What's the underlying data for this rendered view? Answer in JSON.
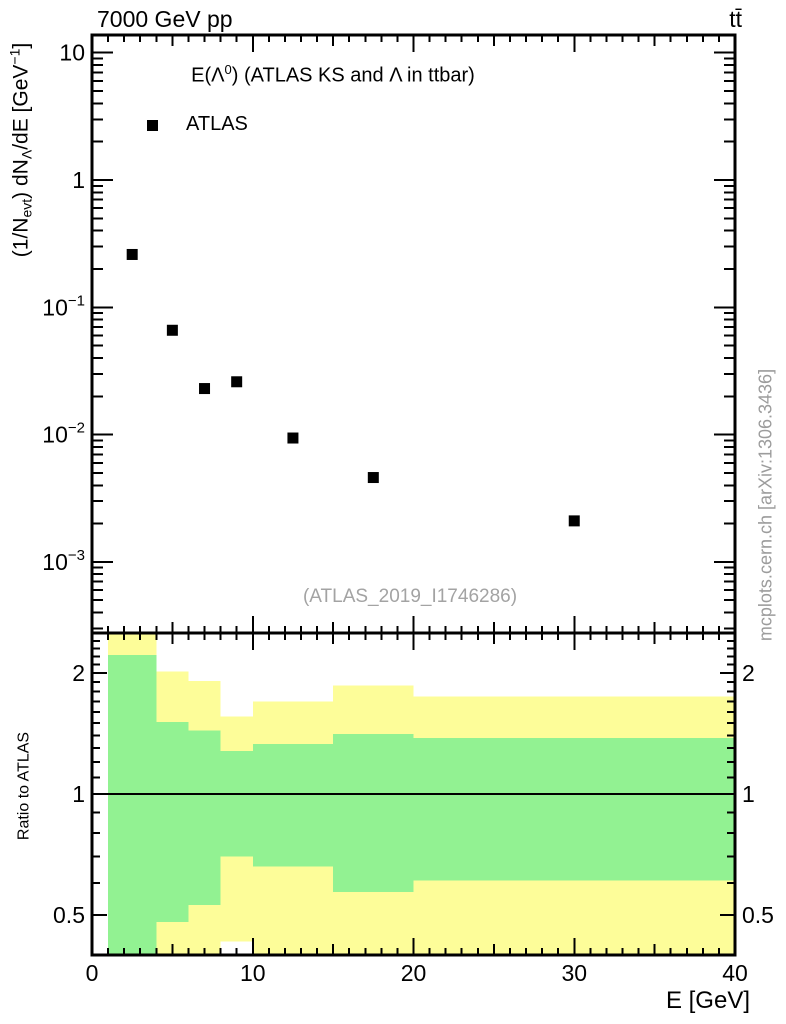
{
  "header": {
    "left": "7000 GeV pp",
    "right": "tt̄"
  },
  "title": {
    "pre": "E(Λ",
    "sup": "0",
    "post": ") (ATLAS KS and Λ in ttbar)"
  },
  "legend": {
    "label": "ATLAS",
    "marker": "filled-square-icon",
    "marker_color": "#000000"
  },
  "watermark": "(ATLAS_2019_I1746286)",
  "side_note": "mcplots.cern.ch [arXiv:1306.3436]",
  "ylabel": {
    "p1": "(1/N",
    "sub1": "evt",
    "p2": ") dN",
    "sub2": "Λ",
    "p3": "/dE [GeV",
    "sup": "−1",
    "p4": "]"
  },
  "ratio_ylabel": "Ratio to ATLAS",
  "xlabel": "E [GeV]",
  "colors": {
    "band_yellow": "#fdfd99",
    "band_green": "#92f292",
    "marker": "#000000",
    "frame": "#000000",
    "gray_text": "#9c9c9c"
  },
  "chart_data": [
    {
      "type": "scatter",
      "panel": "top",
      "title": "E(Λ⁰) (ATLAS KS and Λ in ttbar)",
      "xlabel": "E [GeV]",
      "ylabel": "(1/N_evt) dN_Λ/dE [GeV⁻¹]",
      "xlim": [
        0,
        40
      ],
      "yscale": "log",
      "ylim": [
        0.00028,
        13.8
      ],
      "grid": false,
      "legend_position": "upper-left-inside",
      "x_ticks": [
        {
          "v": 0,
          "label": "0"
        },
        {
          "v": 10,
          "label": "10"
        },
        {
          "v": 20,
          "label": "20"
        },
        {
          "v": 30,
          "label": "30"
        },
        {
          "v": 40,
          "label": "40"
        }
      ],
      "y_ticks": [
        {
          "v": 10,
          "base": "10",
          "exp": ""
        },
        {
          "v": 1,
          "base": "1",
          "exp": ""
        },
        {
          "v": 0.1,
          "base": "10",
          "exp": "−1"
        },
        {
          "v": 0.01,
          "base": "10",
          "exp": "−2"
        },
        {
          "v": 0.001,
          "base": "10",
          "exp": "−3"
        }
      ],
      "series": [
        {
          "name": "ATLAS",
          "marker": "filled-square",
          "color": "#000000",
          "x": [
            2.5,
            5,
            7,
            9,
            12.5,
            17.5,
            30
          ],
          "y": [
            0.26,
            0.066,
            0.023,
            0.026,
            0.0094,
            0.0046,
            0.0021
          ]
        }
      ]
    },
    {
      "type": "ratio-bands",
      "panel": "bottom",
      "ylabel": "Ratio to ATLAS",
      "yscale": "log",
      "ylim": [
        0.397,
        2.515
      ],
      "ref_line": 1,
      "y_ticks": [
        {
          "v": 2,
          "label": "2"
        },
        {
          "v": 1,
          "label": "1"
        },
        {
          "v": 0.5,
          "label": "0.5"
        }
      ],
      "bin_edges": [
        1,
        4,
        6,
        8,
        10,
        15,
        20,
        40
      ],
      "bands": {
        "yellow": {
          "lo": [
            0.38,
            0.38,
            0.38,
            0.43,
            0.38,
            0.38,
            0.38
          ],
          "hi": [
            2.52,
            2.02,
            1.91,
            1.56,
            1.7,
            1.86,
            1.75
          ]
        },
        "green": {
          "lo": [
            0.38,
            0.48,
            0.53,
            0.7,
            0.66,
            0.57,
            0.61
          ],
          "hi": [
            2.22,
            1.51,
            1.44,
            1.28,
            1.33,
            1.41,
            1.38
          ]
        }
      }
    }
  ]
}
